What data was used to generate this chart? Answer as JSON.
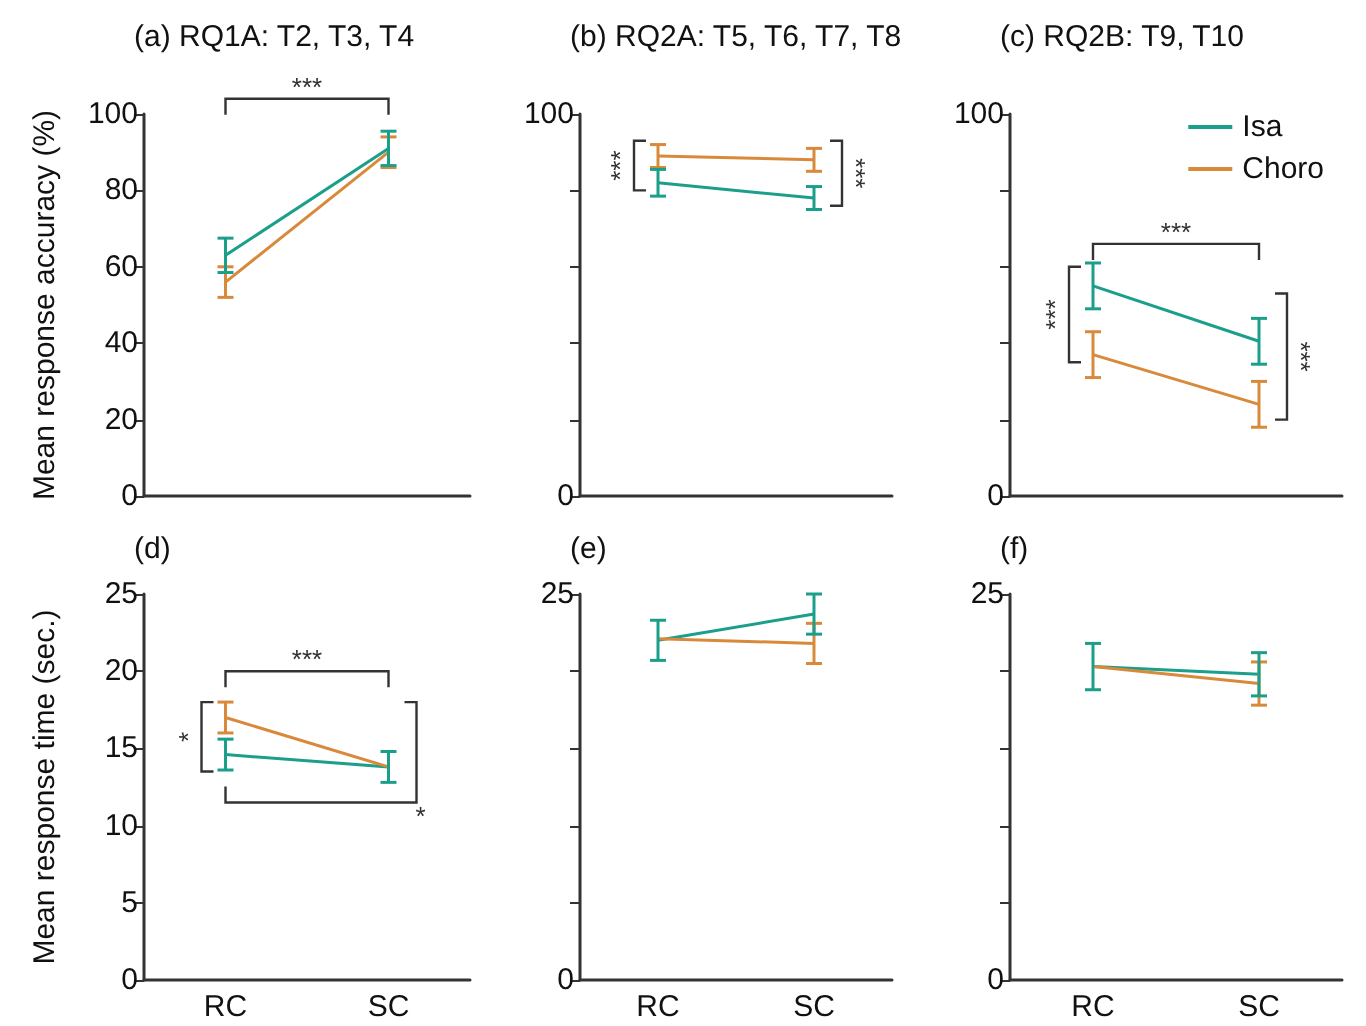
{
  "chart_data": [
    {
      "type": "line",
      "title": "(a) RQ1A: T2, T3, T4",
      "ylabel": "Mean response accuracy (%)",
      "categories": [
        null,
        null
      ],
      "ylim": [
        0,
        100
      ],
      "yticks": [
        0,
        20,
        40,
        60,
        80,
        100
      ],
      "tick_labels": "y",
      "marker": "none",
      "line_style": "solid",
      "annotations": [
        "***"
      ],
      "series": [
        {
          "color": "#1b9e8a",
          "values": [
            63,
            91
          ],
          "errors": [
            4.5,
            4.5
          ]
        },
        {
          "color": "#d9893a",
          "values": [
            56,
            90
          ],
          "errors": [
            4,
            4
          ]
        }
      ]
    },
    {
      "type": "line",
      "title": "(b) RQ2A: T5, T6, T7, T8",
      "categories": [
        null,
        null
      ],
      "ylim": [
        0,
        100
      ],
      "yticks": [
        0,
        {
          "value": 20,
          "label": null
        },
        {
          "value": 40,
          "label": null
        },
        {
          "value": 60,
          "label": null
        },
        {
          "value": 80,
          "label": null
        },
        100
      ],
      "tick_labels": "y",
      "marker": "none",
      "line_style": "solid",
      "annotations": [
        "***",
        "***"
      ],
      "series": [
        {
          "color": "#1b9e8a",
          "values": [
            82,
            78
          ],
          "errors": [
            3.5,
            3
          ]
        },
        {
          "color": "#d9893a",
          "values": [
            89,
            88
          ],
          "errors": [
            3,
            3
          ]
        }
      ]
    },
    {
      "type": "line",
      "title": "(c) RQ2B: T9, T10",
      "categories": [
        null,
        null
      ],
      "ylim": [
        0,
        100
      ],
      "yticks": [
        0,
        {
          "value": 20,
          "label": null
        },
        {
          "value": 40,
          "label": null
        },
        {
          "value": 60,
          "label": null
        },
        {
          "value": 80,
          "label": null
        },
        100
      ],
      "tick_labels": "y",
      "marker": "none",
      "line_style": "solid",
      "legend": "top right",
      "annotations": [
        "***",
        "***",
        "***"
      ],
      "series": [
        {
          "name": "Isa",
          "color": "#1b9e8a",
          "values": [
            55,
            40.5
          ],
          "errors": [
            6,
            6
          ]
        },
        {
          "name": "Choro",
          "color": "#d9893a",
          "values": [
            37,
            24
          ],
          "errors": [
            6,
            6
          ]
        }
      ]
    },
    {
      "type": "line",
      "title": "(d)",
      "ylabel": "Mean response time (sec.)",
      "categories": [
        "RC",
        "SC"
      ],
      "ylim": [
        0,
        25
      ],
      "yticks": [
        0,
        5,
        10,
        15,
        20,
        25
      ],
      "marker": "none",
      "line_style": "solid",
      "annotations": [
        "***",
        "*",
        "*"
      ],
      "series": [
        {
          "color": "#1b9e8a",
          "values": [
            14.6,
            13.8
          ],
          "errors": [
            1,
            1
          ]
        },
        {
          "color": "#d9893a",
          "values": [
            17,
            13.8
          ],
          "errors": [
            1,
            null
          ]
        }
      ]
    },
    {
      "type": "line",
      "title": "(e)",
      "categories": [
        "RC",
        "SC"
      ],
      "ylim": [
        0,
        25
      ],
      "yticks": [
        0,
        {
          "value": 5,
          "label": null
        },
        {
          "value": 10,
          "label": null
        },
        {
          "value": 15,
          "label": null
        },
        {
          "value": 20,
          "label": null
        },
        25
      ],
      "marker": "none",
      "line_style": "solid",
      "series": [
        {
          "color": "#1b9e8a",
          "values": [
            22,
            23.7
          ],
          "errors": [
            1.3,
            1.3
          ]
        },
        {
          "color": "#d9893a",
          "values": [
            22.1,
            21.8
          ],
          "errors": [
            null,
            1.3
          ]
        }
      ]
    },
    {
      "type": "line",
      "title": "(f)",
      "categories": [
        "RC",
        "SC"
      ],
      "ylim": [
        0,
        25
      ],
      "yticks": [
        0,
        {
          "value": 5,
          "label": null
        },
        {
          "value": 10,
          "label": null
        },
        {
          "value": 15,
          "label": null
        },
        {
          "value": 20,
          "label": null
        },
        25
      ],
      "marker": "none",
      "line_style": "solid",
      "series": [
        {
          "color": "#1b9e8a",
          "values": [
            20.3,
            19.8
          ],
          "errors": [
            1.5,
            1.4
          ]
        },
        {
          "color": "#d9893a",
          "values": [
            20.3,
            19.2
          ],
          "errors": [
            null,
            1.4
          ]
        }
      ]
    }
  ]
}
